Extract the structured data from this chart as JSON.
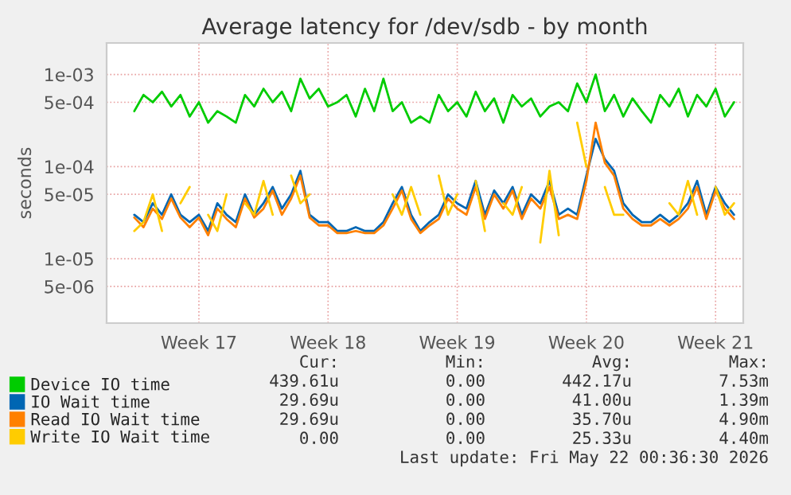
{
  "chart_data": {
    "type": "line",
    "title": "Average latency for /dev/sdb - by month",
    "ylabel": "seconds",
    "log": true,
    "grid": true,
    "legend": "bottom",
    "marker": "none",
    "line_style": "solid",
    "ylim": [
      2e-06,
      0.0022
    ],
    "yticks": [
      {
        "value": 5e-06,
        "label": "5e-06"
      },
      {
        "value": 1e-05,
        "label": "1e-05"
      },
      {
        "value": 5e-05,
        "label": "5e-05"
      },
      {
        "value": 0.0001,
        "label": "1e-04"
      },
      {
        "value": 0.0005,
        "label": "5e-04"
      },
      {
        "value": 0.001,
        "label": "1e-03"
      }
    ],
    "categories": [
      null,
      null,
      null,
      null,
      null,
      null,
      null,
      "Week 17",
      null,
      null,
      null,
      null,
      null,
      null,
      null,
      null,
      null,
      null,
      null,
      null,
      null,
      "Week 18",
      null,
      null,
      null,
      null,
      null,
      null,
      null,
      null,
      null,
      null,
      null,
      null,
      null,
      "Week 19",
      null,
      null,
      null,
      null,
      null,
      null,
      null,
      null,
      null,
      null,
      null,
      null,
      null,
      "Week 20",
      null,
      null,
      null,
      null,
      null,
      null,
      null,
      null,
      null,
      null,
      null,
      null,
      null,
      "Week 21",
      null,
      null
    ],
    "series": [
      {
        "name": "Device IO time",
        "color": "#00cc00",
        "values": [
          0.0004,
          0.0006,
          0.0005,
          0.00065,
          0.00045,
          0.0006,
          0.00035,
          0.0005,
          0.0003,
          0.0004,
          0.00035,
          0.0003,
          0.0006,
          0.00045,
          0.0007,
          0.0005,
          0.00065,
          0.0004,
          0.0009,
          0.00055,
          0.0007,
          0.00045,
          0.0005,
          0.0006,
          0.00035,
          0.0007,
          0.0004,
          0.0009,
          0.0004,
          0.0005,
          0.0003,
          0.00035,
          0.0003,
          0.0006,
          0.0004,
          0.0005,
          0.00035,
          0.00065,
          0.0004,
          0.00055,
          0.0003,
          0.0006,
          0.00045,
          0.00055,
          0.00035,
          0.00045,
          0.0005,
          0.0004,
          0.0008,
          0.0005,
          0.001,
          0.0004,
          0.0006,
          0.00035,
          0.00055,
          0.0004,
          0.0003,
          0.0006,
          0.00045,
          0.0007,
          0.00035,
          0.0006,
          0.00045,
          0.0007,
          0.00035,
          0.0005
        ]
      },
      {
        "name": "IO Wait time",
        "color": "#0066b3",
        "values": [
          3e-05,
          2.5e-05,
          4e-05,
          3e-05,
          5e-05,
          3e-05,
          2.5e-05,
          3e-05,
          2e-05,
          4e-05,
          3e-05,
          2.5e-05,
          5e-05,
          3e-05,
          4e-05,
          6e-05,
          3.5e-05,
          5e-05,
          9e-05,
          3e-05,
          2.5e-05,
          2.5e-05,
          2e-05,
          2e-05,
          2.2e-05,
          2e-05,
          2e-05,
          2.5e-05,
          4e-05,
          6e-05,
          3e-05,
          2e-05,
          2.5e-05,
          3e-05,
          5e-05,
          4e-05,
          3.5e-05,
          7e-05,
          3e-05,
          5.5e-05,
          4e-05,
          6e-05,
          3e-05,
          5e-05,
          4e-05,
          7e-05,
          3e-05,
          3.5e-05,
          3e-05,
          8e-05,
          0.0002,
          0.00012,
          9e-05,
          4e-05,
          3e-05,
          2.5e-05,
          2.5e-05,
          3e-05,
          2.5e-05,
          3e-05,
          4e-05,
          7e-05,
          3e-05,
          6e-05,
          4e-05,
          3e-05
        ]
      },
      {
        "name": "Read IO Wait time",
        "color": "#ff8000",
        "values": [
          2.8e-05,
          2.2e-05,
          3.5e-05,
          2.7e-05,
          4.5e-05,
          2.8e-05,
          2.2e-05,
          2.8e-05,
          1.8e-05,
          3.5e-05,
          2.7e-05,
          2.2e-05,
          4.5e-05,
          2.8e-05,
          3.5e-05,
          5.5e-05,
          3e-05,
          4.5e-05,
          8e-05,
          2.8e-05,
          2.3e-05,
          2.3e-05,
          1.9e-05,
          1.9e-05,
          2e-05,
          1.9e-05,
          1.9e-05,
          2.3e-05,
          3.5e-05,
          5.5e-05,
          2.7e-05,
          1.9e-05,
          2.3e-05,
          2.7e-05,
          4.5e-05,
          3.5e-05,
          3e-05,
          6e-05,
          2.7e-05,
          5e-05,
          3.5e-05,
          5.5e-05,
          2.7e-05,
          4.5e-05,
          3.5e-05,
          6e-05,
          2.7e-05,
          3e-05,
          2.7e-05,
          7e-05,
          0.0003,
          0.00011,
          8e-05,
          3.5e-05,
          2.7e-05,
          2.3e-05,
          2.3e-05,
          2.7e-05,
          2.3e-05,
          2.7e-05,
          3.5e-05,
          6e-05,
          2.7e-05,
          5.5e-05,
          3.5e-05,
          2.7e-05
        ]
      },
      {
        "name": "Write IO Wait time",
        "color": "#ffcc00",
        "values": [
          2e-05,
          2.5e-05,
          5e-05,
          2e-05,
          null,
          4e-05,
          6e-05,
          null,
          3e-05,
          2e-05,
          5e-05,
          null,
          4e-05,
          3e-05,
          7e-05,
          3e-05,
          null,
          8e-05,
          4e-05,
          5e-05,
          null,
          null,
          null,
          null,
          null,
          null,
          null,
          null,
          5e-05,
          3e-05,
          6e-05,
          3e-05,
          null,
          8e-05,
          3e-05,
          5e-05,
          null,
          7e-05,
          2e-05,
          null,
          4e-05,
          3e-05,
          6e-05,
          null,
          1.5e-05,
          9e-05,
          1.8e-05,
          null,
          0.0003,
          0.0001,
          null,
          6e-05,
          3e-05,
          3e-05,
          null,
          null,
          null,
          null,
          4e-05,
          3e-05,
          7e-05,
          3e-05,
          null,
          6e-05,
          3e-05,
          4e-05
        ]
      }
    ],
    "annotations": [
      "Cur:",
      "Min:",
      "Avg:",
      "Max:",
      "439.61u",
      "0.00",
      "442.17u",
      "7.53m",
      "29.69u",
      "0.00",
      "41.00u",
      "1.39m",
      "29.69u",
      "0.00",
      "35.70u",
      "4.90m",
      "0.00",
      "0.00",
      "25.33u",
      "4.40m",
      "Last update: Fri May 22 00:36:30 2026"
    ]
  }
}
